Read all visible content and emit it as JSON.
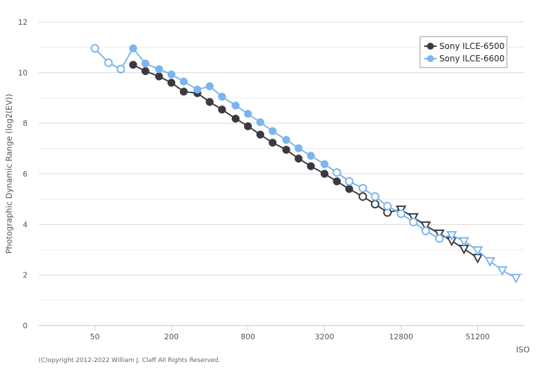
{
  "chart_data": {
    "type": "line",
    "title": "",
    "xlabel": "ISO",
    "ylabel": "Photographic Dynamic Range (log2(EV))",
    "x_scale": "log2",
    "x_ticks": [
      50,
      200,
      800,
      3200,
      12800,
      51200
    ],
    "x_tick_labels": [
      "50",
      "200",
      "800",
      "3200",
      "12800",
      "51200"
    ],
    "xlim": [
      25,
      150000
    ],
    "y_ticks": [
      0,
      2,
      4,
      6,
      8,
      10,
      12
    ],
    "y_tick_labels": [
      "0",
      "2",
      "4",
      "6",
      "8",
      "10",
      "12"
    ],
    "ylim": [
      0,
      12
    ],
    "grid": true,
    "legend_position": "top-right",
    "copyright": "(C)opyright 2012-2022 William J. Claff All Rights Reserved.",
    "series": [
      {
        "name": "Sony ILCE-6500",
        "color": "#3a3a40",
        "points": [
          {
            "iso": 100,
            "value": 10.31,
            "marker": "filled"
          },
          {
            "iso": 125,
            "value": 10.06,
            "marker": "filled"
          },
          {
            "iso": 160,
            "value": 9.85,
            "marker": "filled"
          },
          {
            "iso": 200,
            "value": 9.6,
            "marker": "filled"
          },
          {
            "iso": 250,
            "value": 9.25,
            "marker": "filled"
          },
          {
            "iso": 320,
            "value": 9.19,
            "marker": "filled"
          },
          {
            "iso": 400,
            "value": 8.84,
            "marker": "filled"
          },
          {
            "iso": 500,
            "value": 8.54,
            "marker": "filled"
          },
          {
            "iso": 640,
            "value": 8.18,
            "marker": "filled"
          },
          {
            "iso": 800,
            "value": 7.88,
            "marker": "filled"
          },
          {
            "iso": 1000,
            "value": 7.55,
            "marker": "filled"
          },
          {
            "iso": 1250,
            "value": 7.23,
            "marker": "filled"
          },
          {
            "iso": 1600,
            "value": 6.95,
            "marker": "filled"
          },
          {
            "iso": 2000,
            "value": 6.6,
            "marker": "filled"
          },
          {
            "iso": 2500,
            "value": 6.3,
            "marker": "filled"
          },
          {
            "iso": 3200,
            "value": 6.0,
            "marker": "filled"
          },
          {
            "iso": 4000,
            "value": 5.7,
            "marker": "filled"
          },
          {
            "iso": 5000,
            "value": 5.4,
            "marker": "filled"
          },
          {
            "iso": 6400,
            "value": 5.1,
            "marker": "open"
          },
          {
            "iso": 8000,
            "value": 4.8,
            "marker": "open"
          },
          {
            "iso": 10000,
            "value": 4.47,
            "marker": "open"
          },
          {
            "iso": 12800,
            "value": 4.58,
            "marker": "triangle"
          },
          {
            "iso": 16000,
            "value": 4.28,
            "marker": "triangle"
          },
          {
            "iso": 20000,
            "value": 3.95,
            "marker": "triangle"
          },
          {
            "iso": 25600,
            "value": 3.63,
            "marker": "triangle"
          },
          {
            "iso": 32000,
            "value": 3.35,
            "marker": "triangle"
          },
          {
            "iso": 40000,
            "value": 3.03,
            "marker": "triangle"
          },
          {
            "iso": 51200,
            "value": 2.67,
            "marker": "triangle"
          }
        ]
      },
      {
        "name": "Sony ILCE-6600",
        "color": "#7cb5ec",
        "points": [
          {
            "iso": 50,
            "value": 10.96,
            "marker": "open"
          },
          {
            "iso": 64,
            "value": 10.39,
            "marker": "open"
          },
          {
            "iso": 80,
            "value": 10.14,
            "marker": "open"
          },
          {
            "iso": 100,
            "value": 10.96,
            "marker": "filled"
          },
          {
            "iso": 125,
            "value": 10.36,
            "marker": "filled"
          },
          {
            "iso": 160,
            "value": 10.14,
            "marker": "filled"
          },
          {
            "iso": 200,
            "value": 9.93,
            "marker": "filled"
          },
          {
            "iso": 250,
            "value": 9.65,
            "marker": "filled"
          },
          {
            "iso": 320,
            "value": 9.33,
            "marker": "filled"
          },
          {
            "iso": 400,
            "value": 9.46,
            "marker": "filled"
          },
          {
            "iso": 500,
            "value": 9.05,
            "marker": "filled"
          },
          {
            "iso": 640,
            "value": 8.7,
            "marker": "filled"
          },
          {
            "iso": 800,
            "value": 8.37,
            "marker": "filled"
          },
          {
            "iso": 1000,
            "value": 8.04,
            "marker": "filled"
          },
          {
            "iso": 1250,
            "value": 7.69,
            "marker": "filled"
          },
          {
            "iso": 1600,
            "value": 7.34,
            "marker": "filled"
          },
          {
            "iso": 2000,
            "value": 7.01,
            "marker": "filled"
          },
          {
            "iso": 2500,
            "value": 6.71,
            "marker": "filled"
          },
          {
            "iso": 3200,
            "value": 6.38,
            "marker": "filled"
          },
          {
            "iso": 4000,
            "value": 6.05,
            "marker": "open"
          },
          {
            "iso": 5000,
            "value": 5.7,
            "marker": "open"
          },
          {
            "iso": 6400,
            "value": 5.43,
            "marker": "open"
          },
          {
            "iso": 8000,
            "value": 5.1,
            "marker": "open"
          },
          {
            "iso": 10000,
            "value": 4.72,
            "marker": "open"
          },
          {
            "iso": 12800,
            "value": 4.42,
            "marker": "open"
          },
          {
            "iso": 16000,
            "value": 4.09,
            "marker": "open"
          },
          {
            "iso": 20000,
            "value": 3.74,
            "marker": "open"
          },
          {
            "iso": 25600,
            "value": 3.44,
            "marker": "open"
          },
          {
            "iso": 32000,
            "value": 3.57,
            "marker": "triangle"
          },
          {
            "iso": 40000,
            "value": 3.33,
            "marker": "triangle"
          },
          {
            "iso": 51200,
            "value": 2.97,
            "marker": "triangle"
          },
          {
            "iso": 64000,
            "value": 2.54,
            "marker": "triangle"
          },
          {
            "iso": 80000,
            "value": 2.18,
            "marker": "triangle"
          },
          {
            "iso": 102400,
            "value": 1.88,
            "marker": "triangle"
          }
        ]
      }
    ]
  }
}
